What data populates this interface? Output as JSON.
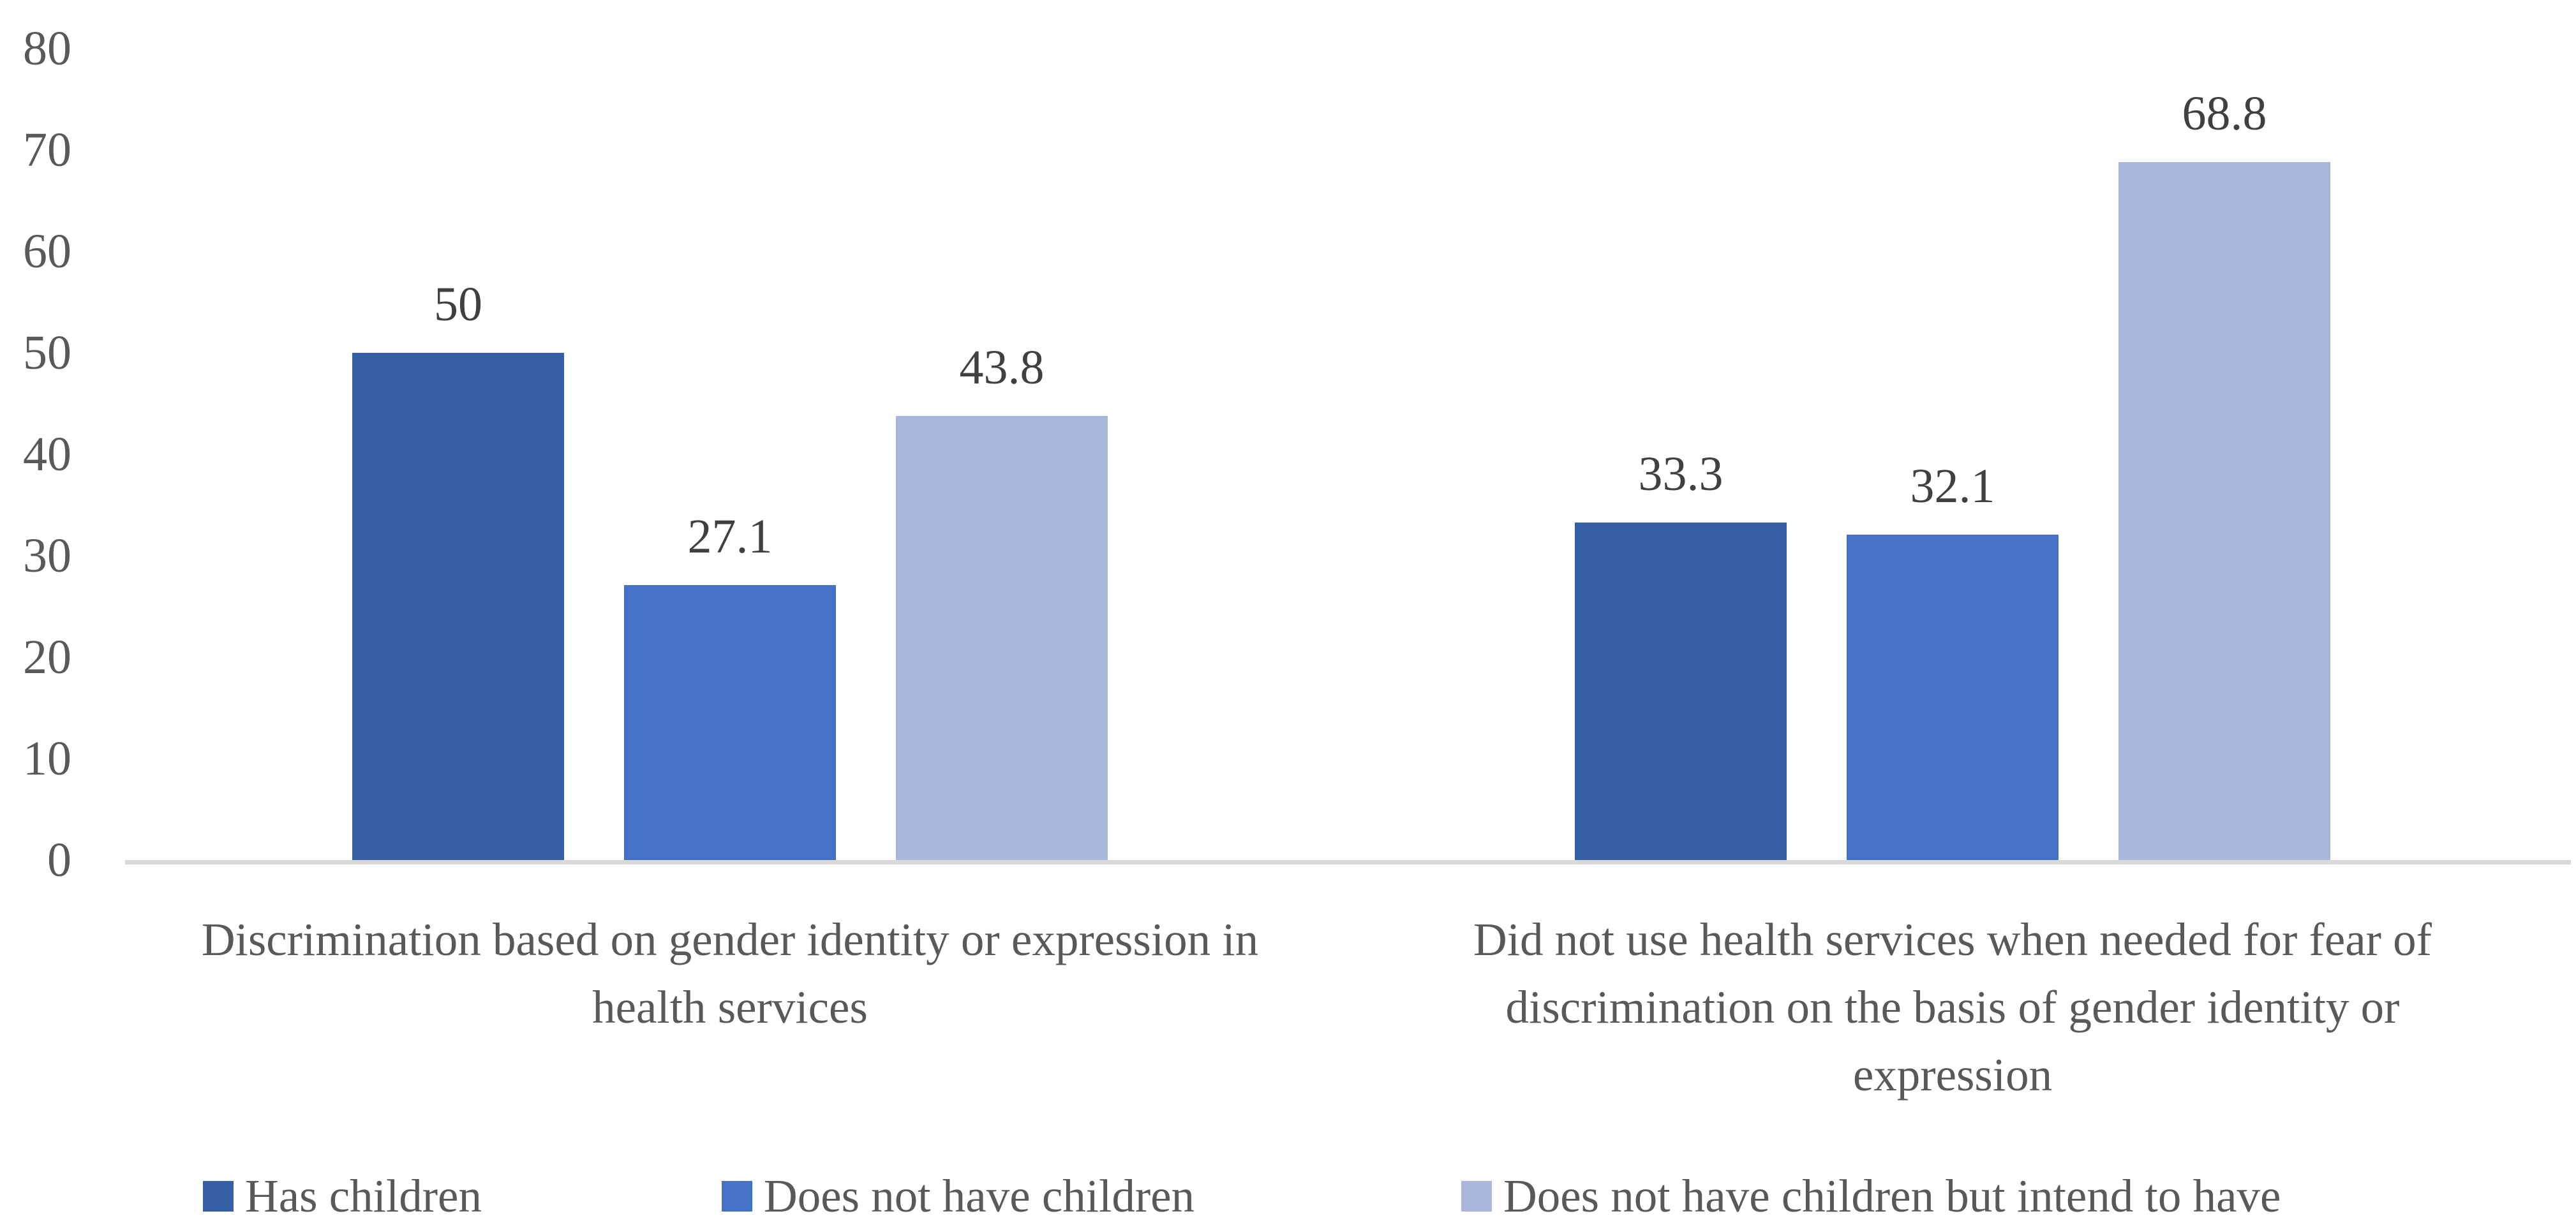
{
  "chart_data": {
    "type": "bar",
    "title": "",
    "xlabel": "",
    "ylabel": "",
    "ylim": [
      0,
      80
    ],
    "yticks": [
      "0",
      "10",
      "20",
      "30",
      "40",
      "50",
      "60",
      "70",
      "80"
    ],
    "grid": false,
    "legend_position": "bottom",
    "categories": [
      "Discrimination based on gender identity or expression in health services",
      "Did not use health services when needed for fear of discrimination on the basis of gender identity or expression"
    ],
    "category_lines": [
      [
        "Discrimination based on gender identity or expression in",
        "health services"
      ],
      [
        "Did not use health services when needed for fear of",
        "discrimination on the basis of gender identity or",
        "expression"
      ]
    ],
    "series": [
      {
        "name": "Has children",
        "color": "#3560A4",
        "values": [
          50,
          33.3
        ],
        "value_labels": [
          "50",
          "33.3"
        ]
      },
      {
        "name": "Does not have children",
        "color": "#4472C6",
        "values": [
          27.1,
          32.1
        ],
        "value_labels": [
          "27.1",
          "32.1"
        ]
      },
      {
        "name": "Does not have children but intend to have",
        "color": "#A8B5DC",
        "values": [
          43.8,
          68.8
        ],
        "value_labels": [
          "43.8",
          "68.8"
        ]
      }
    ],
    "colors": {
      "axis_line": "#D9D9D9",
      "tick_text": "#595959",
      "category_text": "#595959",
      "legend_text": "#595959",
      "value_label_text": "#404040",
      "background": "#ffffff"
    }
  }
}
